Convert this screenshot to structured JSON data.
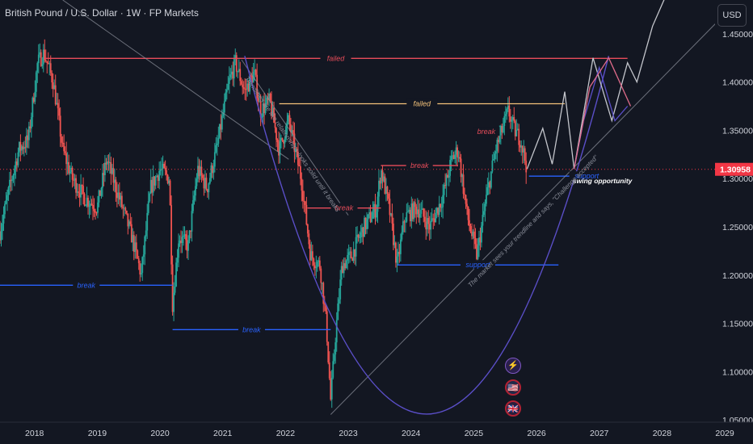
{
  "header": {
    "title": "British Pound / U.S. Dollar · 1W · FP Markets",
    "currency_button": "USD"
  },
  "badges": {
    "lightning": "⚡",
    "us_flag": "🇺🇸",
    "uk_flag": "🇬🇧"
  },
  "colors": {
    "background": "#131722",
    "up": "#26a69a",
    "down": "#ef5350",
    "red_line": "#e84c5a",
    "orange_line": "#f4c27a",
    "blue_line": "#2962ff",
    "purple_curve": "#5b4fc9",
    "gray_line": "#8a8e99",
    "price_tag": "#f23645"
  },
  "chart_data": {
    "type": "candlestick",
    "instrument": "British Pound / U.S. Dollar",
    "interval": "1W",
    "xlim": [
      2017.45,
      2029.45
    ],
    "ylim": [
      1.025,
      1.485
    ],
    "y_ticks": [
      1.45,
      1.4,
      1.35,
      1.3,
      1.25,
      1.2,
      1.15,
      1.1,
      1.05
    ],
    "y_tick_labels": [
      "1.45000",
      "1.40000",
      "1.35000",
      "1.30000",
      "1.25000",
      "1.20000",
      "1.15000",
      "1.10000",
      "1.05000"
    ],
    "x_ticks": [
      2018,
      2019,
      2020,
      2021,
      2022,
      2023,
      2024,
      2025,
      2026,
      2027,
      2028,
      2029
    ],
    "x_tick_labels": [
      "2018",
      "2019",
      "2020",
      "2021",
      "2022",
      "2023",
      "2024",
      "2025",
      "2026",
      "2027",
      "2028",
      "2029"
    ],
    "current_price": 1.30958,
    "current_price_label": "1.30958",
    "price_path": [
      [
        2017.45,
        1.245
      ],
      [
        2017.6,
        1.29
      ],
      [
        2017.75,
        1.33
      ],
      [
        2017.9,
        1.34
      ],
      [
        2018.05,
        1.42
      ],
      [
        2018.15,
        1.43
      ],
      [
        2018.3,
        1.4
      ],
      [
        2018.45,
        1.33
      ],
      [
        2018.6,
        1.3
      ],
      [
        2018.8,
        1.28
      ],
      [
        2019.0,
        1.27
      ],
      [
        2019.15,
        1.32
      ],
      [
        2019.35,
        1.28
      ],
      [
        2019.55,
        1.24
      ],
      [
        2019.7,
        1.2
      ],
      [
        2019.85,
        1.29
      ],
      [
        2020.0,
        1.31
      ],
      [
        2020.15,
        1.3
      ],
      [
        2020.2,
        1.17
      ],
      [
        2020.3,
        1.24
      ],
      [
        2020.45,
        1.23
      ],
      [
        2020.6,
        1.31
      ],
      [
        2020.75,
        1.29
      ],
      [
        2020.9,
        1.33
      ],
      [
        2021.1,
        1.4
      ],
      [
        2021.2,
        1.42
      ],
      [
        2021.35,
        1.39
      ],
      [
        2021.5,
        1.41
      ],
      [
        2021.6,
        1.37
      ],
      [
        2021.75,
        1.38
      ],
      [
        2021.9,
        1.33
      ],
      [
        2022.05,
        1.36
      ],
      [
        2022.25,
        1.3
      ],
      [
        2022.4,
        1.22
      ],
      [
        2022.55,
        1.21
      ],
      [
        2022.65,
        1.15
      ],
      [
        2022.72,
        1.07
      ],
      [
        2022.8,
        1.14
      ],
      [
        2022.9,
        1.21
      ],
      [
        2023.05,
        1.22
      ],
      [
        2023.25,
        1.25
      ],
      [
        2023.45,
        1.27
      ],
      [
        2023.52,
        1.31
      ],
      [
        2023.65,
        1.27
      ],
      [
        2023.78,
        1.21
      ],
      [
        2023.9,
        1.26
      ],
      [
        2024.1,
        1.27
      ],
      [
        2024.3,
        1.25
      ],
      [
        2024.5,
        1.28
      ],
      [
        2024.65,
        1.32
      ],
      [
        2024.75,
        1.33
      ],
      [
        2024.9,
        1.26
      ],
      [
        2025.05,
        1.22
      ],
      [
        2025.2,
        1.28
      ],
      [
        2025.35,
        1.33
      ],
      [
        2025.45,
        1.35
      ],
      [
        2025.55,
        1.37
      ],
      [
        2025.65,
        1.35
      ],
      [
        2025.75,
        1.34
      ],
      [
        2025.85,
        1.31
      ]
    ],
    "levels": [
      {
        "label": "failed",
        "y": 1.4245,
        "x_start": 2018.15,
        "x_end": 2027.45,
        "color": "red"
      },
      {
        "label": "failed",
        "y": 1.3775,
        "x_start": 2021.9,
        "x_end": 2026.45,
        "color": "orange"
      },
      {
        "label": "break",
        "y": 1.3485,
        "x_start": 2025.05,
        "x_end": 2025.35,
        "color": "red"
      },
      {
        "label": "break",
        "y": 1.3135,
        "x_start": 2023.52,
        "x_end": 2024.75,
        "color": "red"
      },
      {
        "label": "break",
        "y": 1.2695,
        "x_start": 2022.35,
        "x_end": 2023.52,
        "color": "red"
      },
      {
        "label": "break",
        "y": 1.1895,
        "x_start": 2017.45,
        "x_end": 2020.2,
        "color": "blue"
      },
      {
        "label": "break",
        "y": 1.1435,
        "x_start": 2020.2,
        "x_end": 2022.72,
        "color": "blue"
      },
      {
        "label": "support",
        "y": 1.2105,
        "x_start": 2023.78,
        "x_end": 2026.35,
        "color": "blue"
      },
      {
        "label": "support",
        "y": 1.3025,
        "x_start": 2025.88,
        "x_end": 2027.05,
        "color": "blue"
      }
    ],
    "annotations": {
      "swing_opportunity": "swing opportunity",
      "trendline_down_note": "Trendlines are like relationships-looks solid until it breaks",
      "trendline_up_note": "The market sees your trendline and says, \"Challenge accepted\""
    },
    "projection_paths": [
      [
        [
          2025.85,
          1.31
        ],
        [
          2026.1,
          1.352
        ],
        [
          2026.25,
          1.315
        ],
        [
          2026.45,
          1.39
        ],
        [
          2026.6,
          1.31
        ],
        [
          2026.9,
          1.425
        ],
        [
          2027.2,
          1.36
        ],
        [
          2027.45,
          1.42
        ],
        [
          2027.6,
          1.4
        ],
        [
          2027.85,
          1.458
        ],
        [
          2028.2,
          1.51
        ]
      ],
      [
        [
          2026.6,
          1.31
        ],
        [
          2026.75,
          1.36
        ],
        [
          2027.0,
          1.415
        ],
        [
          2027.25,
          1.36
        ],
        [
          2027.45,
          1.375
        ]
      ],
      [
        [
          2026.6,
          1.31
        ],
        [
          2026.85,
          1.395
        ],
        [
          2027.15,
          1.425
        ],
        [
          2027.5,
          1.375
        ]
      ]
    ],
    "trendlines": [
      {
        "from": [
          2018.45,
          1.485
        ],
        "to": [
          2022.05,
          1.32
        ],
        "note": "descending"
      },
      {
        "from": [
          2021.3,
          1.423
        ],
        "to": [
          2023.0,
          1.262
        ]
      },
      {
        "from": [
          2022.72,
          1.0555
        ],
        "to": [
          2028.95,
          1.467
        ],
        "note": "ascending"
      }
    ],
    "cup_curve": {
      "start": [
        2021.35,
        1.427
      ],
      "bottom": [
        2024.25,
        1.056
      ],
      "end": [
        2027.15,
        1.427
      ]
    }
  }
}
